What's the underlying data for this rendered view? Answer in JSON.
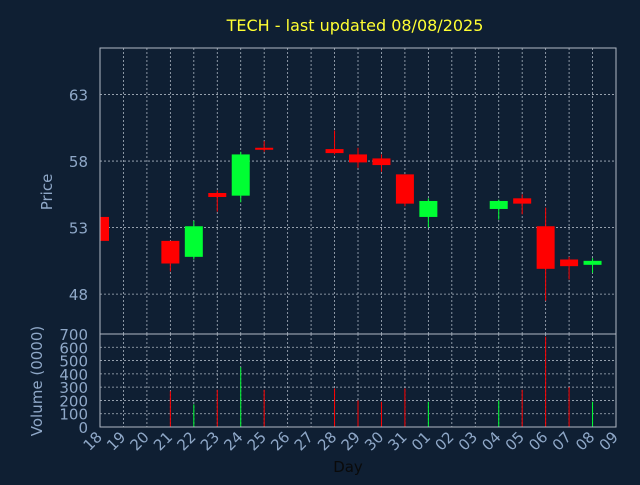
{
  "colors": {
    "background": "#0f1f33",
    "frame": "#b0b8c4",
    "grid": "#aab4c0",
    "axis_text": "#8fa8c8",
    "title": "#ffff33",
    "up": "#00ff33",
    "down": "#ff0000"
  },
  "chart_data": {
    "type": "candlestick",
    "title": "TECH - last updated 08/08/2025",
    "xlabel": "Day",
    "price_panel": {
      "ylabel": "Price",
      "ylim": [
        45.0,
        66.5
      ],
      "yticks": [
        48,
        53,
        58,
        63
      ],
      "grid": true
    },
    "volume_panel": {
      "ylabel": "Volume (0000)",
      "ylim": [
        0,
        700
      ],
      "yticks": [
        0,
        100,
        200,
        300,
        400,
        500,
        600,
        700
      ],
      "grid": true
    },
    "x_tick_labels": [
      "18",
      "19",
      "20",
      "21",
      "22",
      "23",
      "24",
      "25",
      "26",
      "27",
      "28",
      "29",
      "30",
      "31",
      "01",
      "02",
      "03",
      "04",
      "05",
      "06",
      "07",
      "08",
      "09"
    ],
    "candles": [
      {
        "day": "18",
        "open": 53.8,
        "high": 53.8,
        "low": 52.0,
        "close": 52.0,
        "volume": 0
      },
      {
        "day": "21",
        "open": 52.0,
        "high": 52.0,
        "low": 49.7,
        "close": 50.3,
        "volume": 270
      },
      {
        "day": "22",
        "open": 50.8,
        "high": 53.5,
        "low": 50.6,
        "close": 53.1,
        "volume": 170
      },
      {
        "day": "23",
        "open": 55.6,
        "high": 55.8,
        "low": 54.2,
        "close": 55.3,
        "volume": 280
      },
      {
        "day": "24",
        "open": 55.4,
        "high": 58.7,
        "low": 54.9,
        "close": 58.5,
        "volume": 450
      },
      {
        "day": "25",
        "open": 59.0,
        "high": 59.5,
        "low": 58.7,
        "close": 58.9,
        "volume": 280
      },
      {
        "day": "28",
        "open": 58.9,
        "high": 60.3,
        "low": 58.5,
        "close": 58.6,
        "volume": 290
      },
      {
        "day": "29",
        "open": 58.5,
        "high": 59.0,
        "low": 57.5,
        "close": 57.9,
        "volume": 200
      },
      {
        "day": "30",
        "open": 58.2,
        "high": 58.5,
        "low": 57.2,
        "close": 57.7,
        "volume": 190
      },
      {
        "day": "31",
        "open": 57.0,
        "high": 57.0,
        "low": 54.6,
        "close": 54.8,
        "volume": 290
      },
      {
        "day": "01",
        "open": 53.8,
        "high": 55.2,
        "low": 53.0,
        "close": 55.0,
        "volume": 190
      },
      {
        "day": "04",
        "open": 54.4,
        "high": 55.1,
        "low": 53.6,
        "close": 55.0,
        "volume": 200
      },
      {
        "day": "05",
        "open": 55.2,
        "high": 55.5,
        "low": 54.0,
        "close": 54.8,
        "volume": 280
      },
      {
        "day": "06",
        "open": 53.1,
        "high": 54.5,
        "low": 47.5,
        "close": 49.9,
        "volume": 680
      },
      {
        "day": "07",
        "open": 50.6,
        "high": 50.8,
        "low": 49.1,
        "close": 50.1,
        "volume": 300
      },
      {
        "day": "08",
        "open": 50.2,
        "high": 50.7,
        "low": 49.6,
        "close": 50.5,
        "volume": 190
      }
    ]
  }
}
